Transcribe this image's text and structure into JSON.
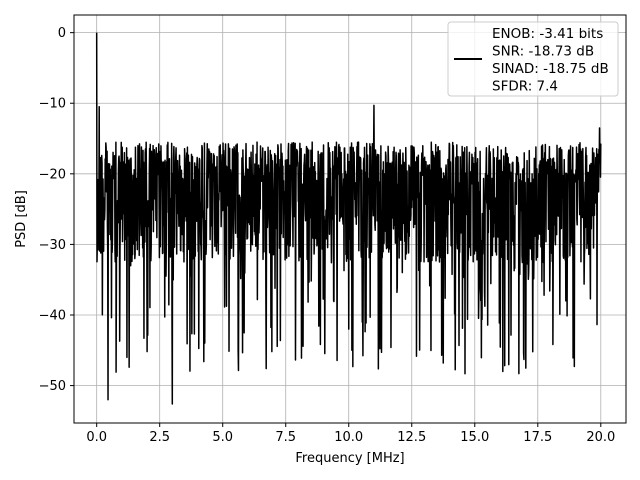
{
  "chart_data": {
    "type": "line",
    "xlabel": "Frequency [MHz]",
    "ylabel": "PSD [dB]",
    "xlim": [
      -0.9,
      21.0
    ],
    "ylim": [
      -55.3,
      2.5
    ],
    "xticks": [
      0.0,
      2.5,
      5.0,
      7.5,
      10.0,
      12.5,
      15.0,
      17.5,
      20.0
    ],
    "xtick_labels": [
      "0.0",
      "2.5",
      "5.0",
      "7.5",
      "10.0",
      "12.5",
      "15.0",
      "17.5",
      "20.0"
    ],
    "yticks": [
      0,
      -10,
      -20,
      -30,
      -40,
      -50
    ],
    "ytick_labels": [
      "0",
      "−10",
      "−20",
      "−30",
      "−40",
      "−50"
    ],
    "grid": true,
    "legend": {
      "placement": "top-right",
      "entries": [
        "ENOB: -3.41 bits",
        "SNR: -18.73 dB",
        "SINAD: -18.75 dB",
        "SFDR: 7.4"
      ]
    },
    "series": [
      {
        "color": "#000000",
        "description_hint": "noise floor trace",
        "peak": {
          "x": 0.0,
          "y": 0.0
        },
        "floor_mean_db": -22.5,
        "x_start": 0.0,
        "x_end": 20.0,
        "notable_minima": [
          {
            "x": 0.45,
            "y": -52.0
          },
          {
            "x": 3.0,
            "y": -52.6
          },
          {
            "x": 16.75,
            "y": -48.3
          },
          {
            "x": 0.77,
            "y": -48.1
          },
          {
            "x": 4.25,
            "y": -46.6
          },
          {
            "x": 11.3,
            "y": -45.3
          },
          {
            "x": 17.3,
            "y": -45.2
          },
          {
            "x": 18.95,
            "y": -47.3
          },
          {
            "x": 13.75,
            "y": -46.8
          },
          {
            "x": 10.0,
            "y": -42.0
          },
          {
            "x": 1.2,
            "y": -46.0
          }
        ],
        "notable_maxima": [
          {
            "x": 0.1,
            "y": -10.5
          },
          {
            "x": 11.0,
            "y": -10.3
          },
          {
            "x": 19.95,
            "y": -13.5
          }
        ]
      }
    ]
  }
}
